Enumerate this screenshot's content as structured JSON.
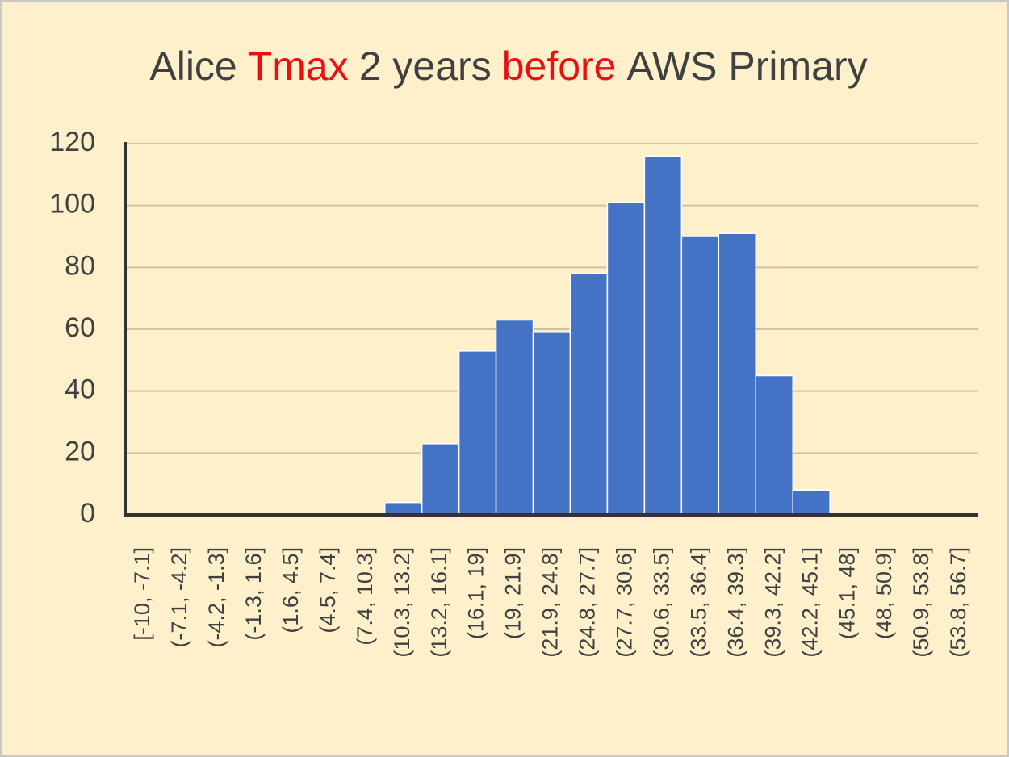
{
  "chart_data": {
    "type": "bar",
    "title_parts": [
      {
        "text": "Alice",
        "color": "#404040"
      },
      {
        "text": "Tmax",
        "color": "#e81010"
      },
      {
        "text": "2 years",
        "color": "#404040"
      },
      {
        "text": "before",
        "color": "#e81010"
      },
      {
        "text": "AWS Primary",
        "color": "#404040"
      }
    ],
    "categories": [
      "[-10, -7.1]",
      "(-7.1, -4.2]",
      "(-4.2, -1.3]",
      "(-1.3, 1.6]",
      "(1.6, 4.5]",
      "(4.5, 7.4]",
      "(7.4, 10.3]",
      "(10.3, 13.2]",
      "(13.2, 16.1]",
      "(16.1, 19]",
      "(19, 21.9]",
      "(21.9, 24.8]",
      "(24.8, 27.7]",
      "(27.7, 30.6]",
      "(30.6, 33.5]",
      "(33.5, 36.4]",
      "(36.4, 39.3]",
      "(39.3, 42.2]",
      "(42.2, 45.1]",
      "(45.1, 48]",
      "(48, 50.9]",
      "(50.9, 53.8]",
      "(53.8, 56.7]"
    ],
    "values": [
      0,
      0,
      0,
      0,
      0,
      0,
      0,
      4,
      23,
      53,
      63,
      59,
      78,
      101,
      116,
      90,
      91,
      45,
      8,
      0,
      0,
      0,
      0
    ],
    "color": "#4472c4",
    "ylim": [
      0,
      120
    ],
    "yticks": [
      0,
      20,
      40,
      60,
      80,
      100,
      120
    ],
    "grid": true
  }
}
